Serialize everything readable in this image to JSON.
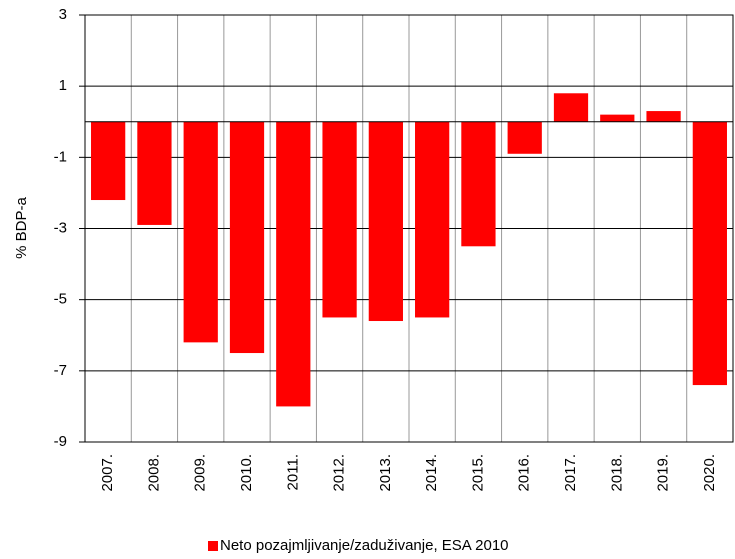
{
  "chart_data": {
    "type": "bar",
    "categories": [
      "2007.",
      "2008.",
      "2009.",
      "2010.",
      "2011.",
      "2012.",
      "2013.",
      "2014.",
      "2015.",
      "2016.",
      "2017.",
      "2018.",
      "2019.",
      "2020."
    ],
    "series": [
      {
        "name": "Neto pozajmljivanje/zaduživanje, ESA 2010",
        "color": "#ff0000",
        "values": [
          -2.2,
          -2.9,
          -6.2,
          -6.5,
          -8.0,
          -5.5,
          -5.6,
          -5.5,
          -3.5,
          -0.9,
          0.8,
          0.2,
          0.3,
          -7.4
        ]
      }
    ],
    "ylabel": "% BDP-a",
    "ylim": [
      -9,
      3
    ],
    "yticks": [
      -9,
      -7,
      -5,
      -3,
      -1,
      1,
      3
    ],
    "grid": true,
    "legend": "bottom"
  }
}
